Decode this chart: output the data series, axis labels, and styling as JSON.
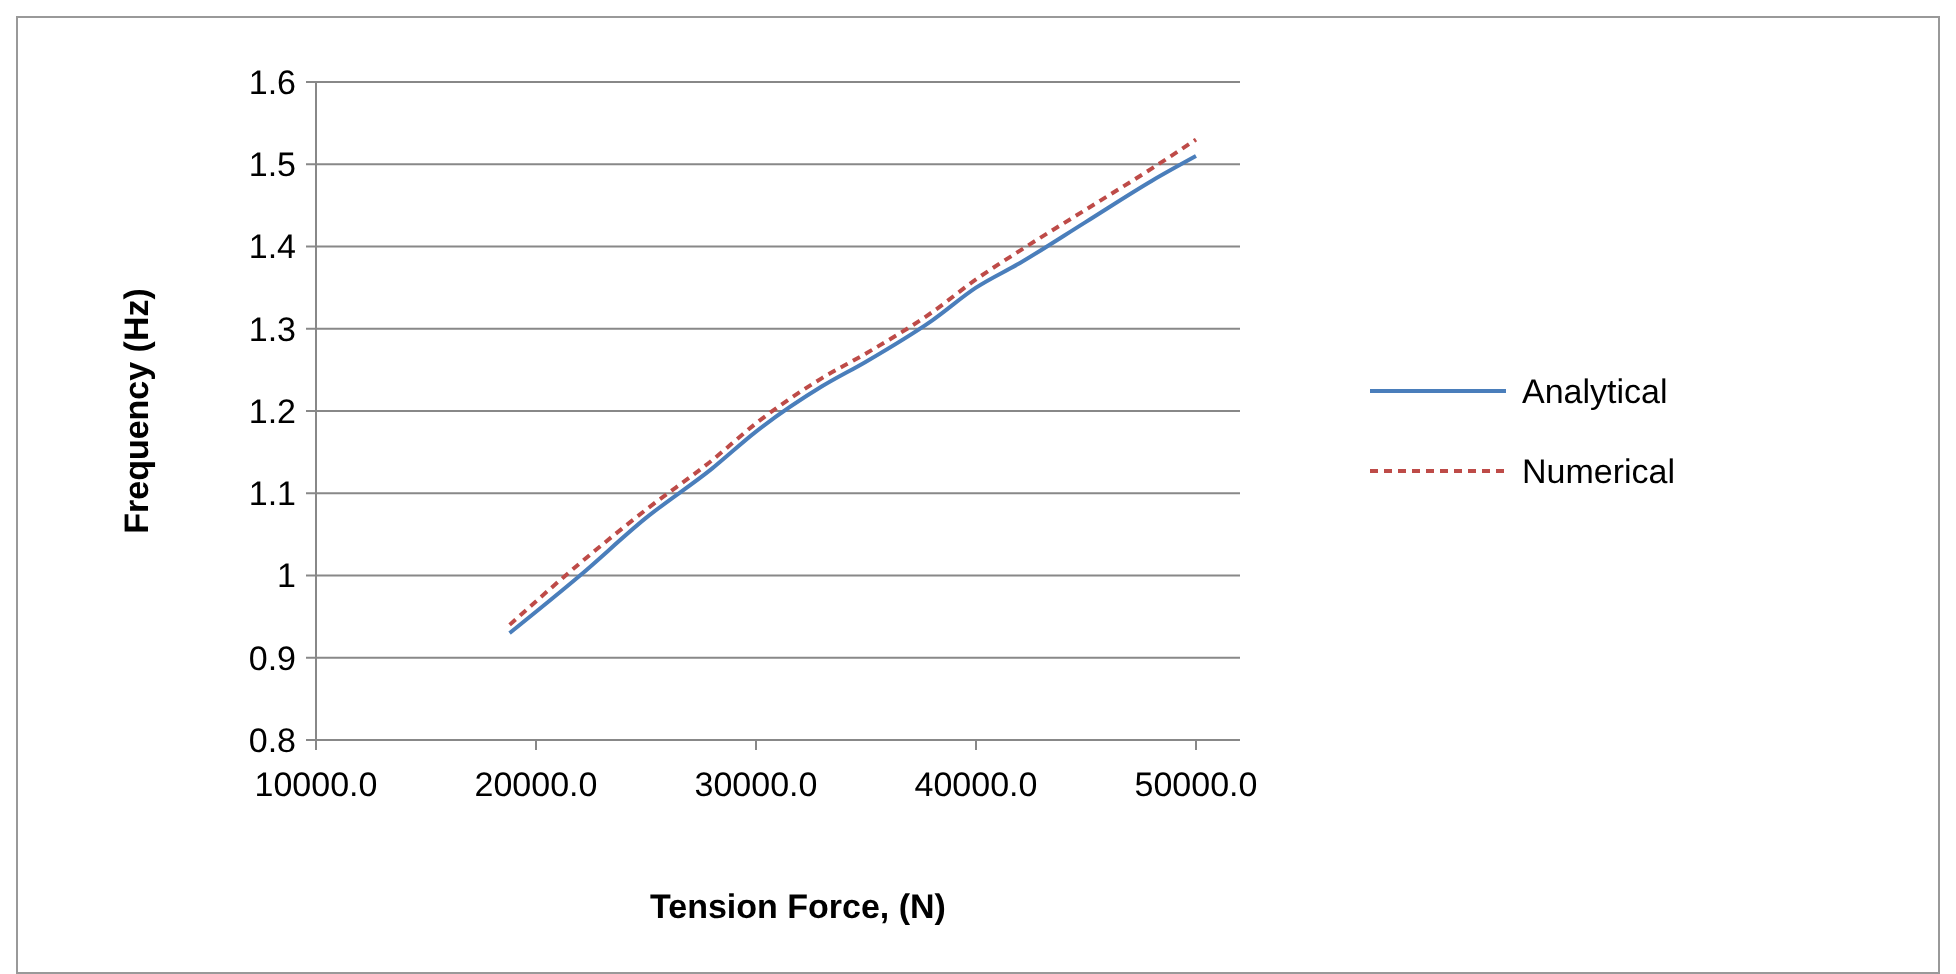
{
  "chart_data": {
    "type": "line",
    "xlabel": "Tension Force, (N)",
    "ylabel": "Frequency (Hz)",
    "xlim": [
      10000,
      52000
    ],
    "xticks": [
      {
        "value": 10000,
        "label": "10000.0"
      },
      {
        "value": 20000,
        "label": "20000.0"
      },
      {
        "value": 30000,
        "label": "30000.0"
      },
      {
        "value": 40000,
        "label": "40000.0"
      },
      {
        "value": 50000,
        "label": "50000.0"
      }
    ],
    "ylim": [
      0.8,
      1.6
    ],
    "yticks": [
      0.8,
      0.9,
      1,
      1.1,
      1.2,
      1.3,
      1.4,
      1.5,
      1.6
    ],
    "grid": "y",
    "legend": "right",
    "series": [
      {
        "name": "Analytical",
        "color": "#4a7ebb",
        "line_style": "solid",
        "x": [
          18800,
          22000,
          25000,
          28000,
          30000,
          33000,
          35000,
          38000,
          40000,
          42000,
          45000,
          48000,
          50000
        ],
        "values": [
          0.93,
          1.0,
          1.07,
          1.13,
          1.175,
          1.23,
          1.26,
          1.31,
          1.35,
          1.38,
          1.43,
          1.48,
          1.51
        ]
      },
      {
        "name": "Numerical",
        "color": "#be4b48",
        "line_style": "dashed",
        "x": [
          18800,
          22000,
          25000,
          28000,
          30000,
          33000,
          35000,
          38000,
          40000,
          42000,
          45000,
          48000,
          50000
        ],
        "values": [
          0.94,
          1.015,
          1.08,
          1.14,
          1.185,
          1.24,
          1.27,
          1.32,
          1.36,
          1.395,
          1.445,
          1.495,
          1.53
        ]
      }
    ]
  }
}
